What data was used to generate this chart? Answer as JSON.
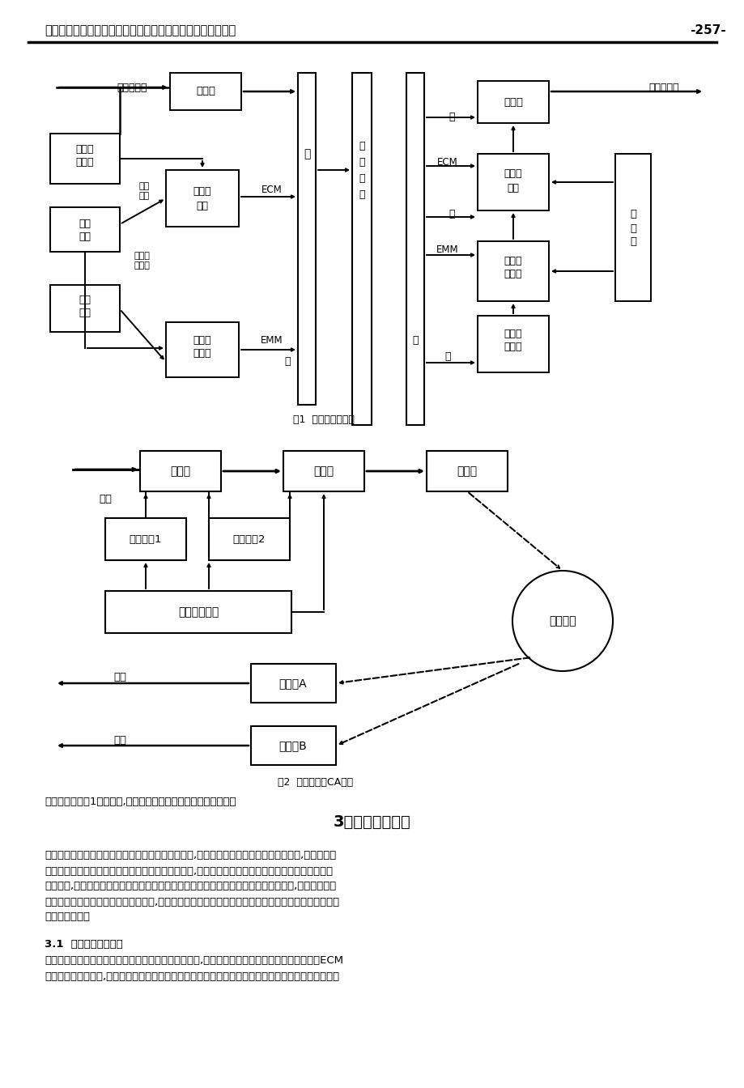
{
  "page_header": "第六届东、津、沪、渝及全国城市有线电视技术研讨会论文集",
  "page_number": "-257-",
  "fig1_caption": "图1  条件接收系统图",
  "fig2_caption": "图2  同密技术的CA系统",
  "section_title": "3．两级条件接收",
  "expl_text": "有条件接收系统1的子系统,便能收看到所有从发送端传来的节目。",
  "para1_lines": [
    "　　两级条件接收就是说中央节目平台节目加密传输,地方服务平台不解密直接下传到用户,中央节目平",
    "台与地方服务平台共同管理本地网络用户的授权信息,订户只有获得了中央节目平台和地方运营商的双",
    "重授权后,才可以收看到共享节目。也就是说在中央节目平台不知晓并没有授权的情况下,本地运营商不",
    "可单独授权订户观看共享节目。相同地,中央节目平台也不可以在没有本地运营商的配合下单独授权订户",
    "观看共享节目。"
  ],
  "section31": "3.1  两级条件接收原理",
  "para2_lines": [
    "　　中央节目平台加扰节目在地方服务平台前端不解扰,地方服务平台前端对中央节目平台产生的ECM",
    "信息进行加扰保护后,通过本地有线网将节目传送到用户机顶盒。只有当用户接收到地方服务平台发送的"
  ]
}
